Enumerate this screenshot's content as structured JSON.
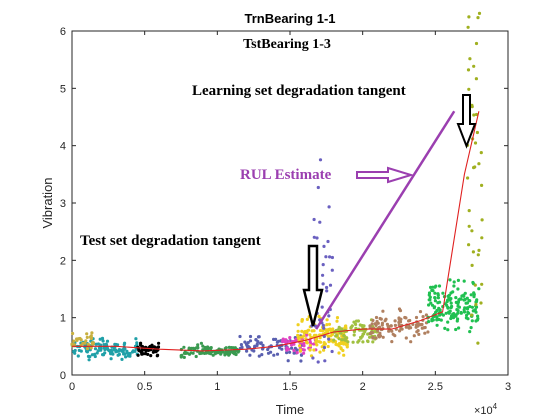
{
  "chart_data": {
    "type": "scatter",
    "title": "TrnBearing 1-1",
    "subtitle": "TstBearing 1-3",
    "xlabel": "Time",
    "ylabel": "Vibration",
    "x_exponent": "×10",
    "x_exponent_power": "4",
    "xlim": [
      0,
      30000
    ],
    "ylim": [
      0,
      6
    ],
    "xticks": [
      0,
      5000,
      10000,
      15000,
      20000,
      25000,
      30000
    ],
    "xtick_labels": [
      "0",
      "0.5",
      "1",
      "1.5",
      "2",
      "2.5",
      "3"
    ],
    "yticks": [
      0,
      1,
      2,
      3,
      4,
      5,
      6
    ],
    "ytick_labels": [
      "0",
      "1",
      "2",
      "3",
      "4",
      "5",
      "6"
    ],
    "series": [
      {
        "color": "#20a0a8",
        "x_range": [
          0,
          4500
        ],
        "y_center": 0.45,
        "spread": 0.08,
        "n": 120
      },
      {
        "color": "#c8b040",
        "x_range": [
          0,
          1500
        ],
        "y_center": 0.6,
        "spread": 0.08,
        "n": 30
      },
      {
        "color": "#000000",
        "x_range": [
          4500,
          6000
        ],
        "y_center": 0.45,
        "spread": 0.05,
        "n": 50
      },
      {
        "color": "#3a9a50",
        "x_range": [
          7500,
          11500
        ],
        "y_center": 0.42,
        "spread": 0.05,
        "n": 100
      },
      {
        "color": "#5a60b0",
        "x_range": [
          11500,
          16000
        ],
        "y_center": 0.5,
        "spread": 0.1,
        "n": 80
      },
      {
        "color": "#e040c0",
        "x_range": [
          14500,
          16800
        ],
        "y_center": 0.55,
        "spread": 0.08,
        "n": 50
      },
      {
        "color": "#f0d020",
        "x_range": [
          15500,
          19000
        ],
        "y_center": 0.65,
        "spread": 0.15,
        "n": 140
      },
      {
        "color": "#6a60c0",
        "x_range": [
          16500,
          18000
        ],
        "y_center": 1.5,
        "spread": 0.9,
        "n": 40
      },
      {
        "color": "#a0c040",
        "x_range": [
          18000,
          21000
        ],
        "y_center": 0.75,
        "spread": 0.1,
        "n": 80
      },
      {
        "color": "#b08060",
        "x_range": [
          20500,
          24500
        ],
        "y_center": 0.85,
        "spread": 0.12,
        "n": 100
      },
      {
        "color": "#20c050",
        "x_range": [
          24500,
          28000
        ],
        "y_center": 1.2,
        "spread": 0.2,
        "n": 160
      },
      {
        "color": "#a0b020",
        "x_range": [
          27200,
          28300
        ],
        "y_center": 3.6,
        "spread": 1.6,
        "n": 45
      }
    ],
    "trend_line": {
      "color": "#e02020",
      "x": [
        0,
        3000,
        6000,
        9000,
        12000,
        14000,
        16000,
        18000,
        20000,
        22000,
        24000,
        25500,
        27000,
        28000
      ],
      "y": [
        0.5,
        0.5,
        0.45,
        0.42,
        0.45,
        0.5,
        0.6,
        0.75,
        0.8,
        0.8,
        0.95,
        1.1,
        3.5,
        4.6
      ]
    },
    "learning_tangent": {
      "color": "#9b3fb0",
      "x": [
        16800,
        26300
      ],
      "y": [
        0.8,
        4.6
      ]
    },
    "annotations": [
      {
        "text": "Learning set degradation tangent",
        "color": "#000000"
      },
      {
        "text": "RUL Estimate",
        "color": "#9b3fb0"
      },
      {
        "text": "Test set degradation tangent",
        "color": "#000000"
      }
    ]
  }
}
